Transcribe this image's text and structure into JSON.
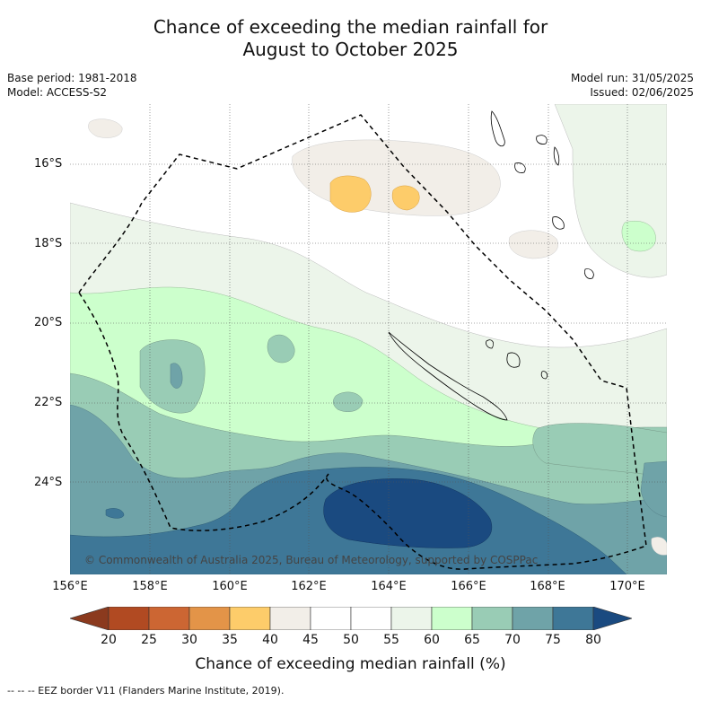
{
  "title_line1": "Chance of exceeding the median rainfall for",
  "title_line2": "August to October 2025",
  "meta_left": {
    "base_period": "Base period: 1981-2018",
    "model": "Model: ACCESS-S2"
  },
  "meta_right": {
    "model_run": "Model run: 31/05/2025",
    "issued": "Issued: 02/06/2025"
  },
  "lat_labels": [
    "16°S",
    "18°S",
    "20°S",
    "22°S",
    "24°S"
  ],
  "lon_labels": [
    "156°E",
    "158°E",
    "160°E",
    "162°E",
    "164°E",
    "166°E",
    "168°E",
    "170°E"
  ],
  "copyright": "© Commonwealth of Australia 2025, Bureau of Meteorology, supported by COSPPac",
  "colorbar": {
    "ticks": [
      "20",
      "25",
      "30",
      "35",
      "40",
      "45",
      "50",
      "55",
      "60",
      "65",
      "70",
      "75",
      "80"
    ],
    "colors": [
      "#8b3a1e",
      "#b14a22",
      "#cc6633",
      "#e39448",
      "#fdcc6a",
      "#f2eee8",
      "#ffffff",
      "#ffffff",
      "#ecf5ea",
      "#ccffcc",
      "#99ccb5",
      "#6fa3a8",
      "#3e7797",
      "#1a4a80"
    ],
    "title": "Chance of exceeding median rainfall (%)"
  },
  "footnote": "--  --  -- EEZ border V11 (Flanders Marine Institute, 2019)."
}
